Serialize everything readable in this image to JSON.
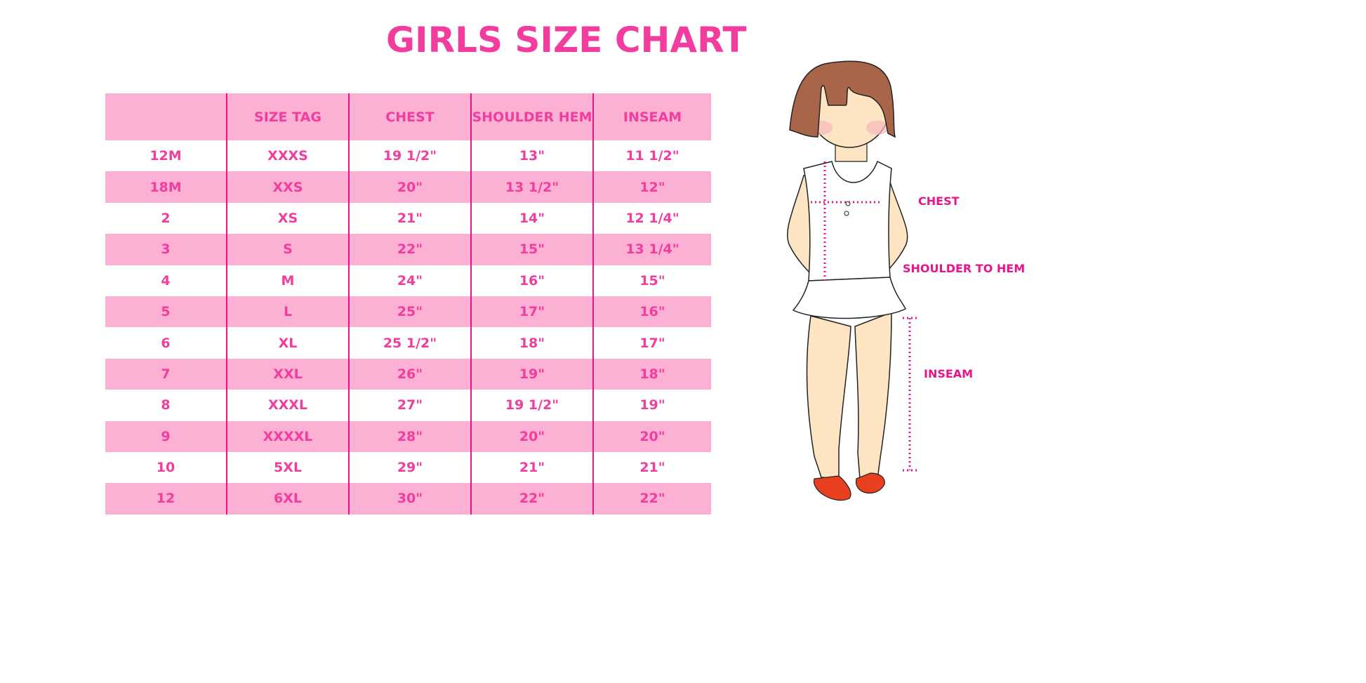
{
  "title": "GIRLS SIZE CHART",
  "table": {
    "headers": [
      "",
      "SIZE TAG",
      "CHEST",
      "SHOULDER HEM",
      "INSEAM"
    ],
    "rows": [
      [
        "12M",
        "XXXS",
        "19 1/2\"",
        "13\"",
        "11 1/2\""
      ],
      [
        "18M",
        "XXS",
        "20\"",
        "13 1/2\"",
        "12\""
      ],
      [
        "2",
        "XS",
        "21\"",
        "14\"",
        "12 1/4\""
      ],
      [
        "3",
        "S",
        "22\"",
        "15\"",
        "13 1/4\""
      ],
      [
        "4",
        "M",
        "24\"",
        "16\"",
        "15\""
      ],
      [
        "5",
        "L",
        "25\"",
        "17\"",
        "16\""
      ],
      [
        "6",
        "XL",
        "25 1/2\"",
        "18\"",
        "17\""
      ],
      [
        "7",
        "XXL",
        "26\"",
        "19\"",
        "18\""
      ],
      [
        "8",
        "XXXL",
        "27\"",
        "19 1/2\"",
        "19\""
      ],
      [
        "9",
        "XXXXL",
        "28\"",
        "20\"",
        "20\""
      ],
      [
        "10",
        "5XL",
        "29\"",
        "21\"",
        "21\""
      ],
      [
        "12",
        "6XL",
        "30\"",
        "22\"",
        "22\""
      ]
    ]
  },
  "figure": {
    "labels": {
      "chest": "CHEST",
      "shoulder_to_hem": "SHOULDER TO HEM",
      "inseam": "INSEAM"
    }
  },
  "colors": {
    "text": "#f23c9e",
    "row_pink": "#fcb0d4",
    "divider": "#e8148c",
    "hair": "#a8654a",
    "skin": "#fde5c4"
  }
}
